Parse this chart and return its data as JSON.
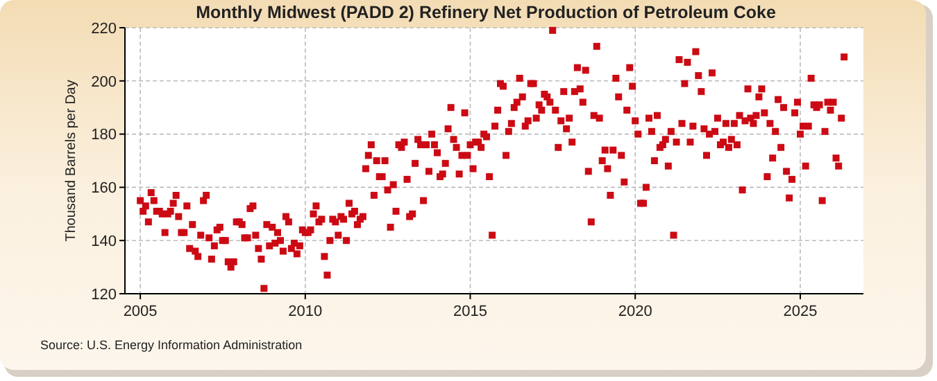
{
  "chart_data": {
    "type": "scatter",
    "title": "Monthly Midwest (PADD 2) Refinery Net Production of Petroleum Coke",
    "ylabel": "Thousand Barrels per Day",
    "annotations": [
      "Source: U.S. Energy Information Administration"
    ],
    "xlim": [
      "2004-07-15",
      "2026-12-01"
    ],
    "xticks": [
      {
        "value": "2005",
        "label": "2005"
      },
      {
        "value": "2010",
        "label": "2010"
      },
      {
        "value": "2015",
        "label": "2015"
      },
      {
        "value": "2020",
        "label": "2020"
      },
      {
        "value": "2025",
        "label": "2025"
      }
    ],
    "ylim": [
      120,
      220
    ],
    "yticks": [
      120,
      140,
      160,
      180,
      200,
      220
    ],
    "grid": true,
    "marker": "square",
    "x": [
      "2005-01",
      "2005-02",
      "2005-03",
      "2005-04",
      "2005-05",
      "2005-06",
      "2005-07",
      "2005-08",
      "2005-09",
      "2005-10",
      "2005-11",
      "2005-12",
      "2006-01",
      "2006-02",
      "2006-03",
      "2006-04",
      "2006-05",
      "2006-06",
      "2006-07",
      "2006-08",
      "2006-09",
      "2006-10",
      "2006-11",
      "2006-12",
      "2007-01",
      "2007-02",
      "2007-03",
      "2007-04",
      "2007-05",
      "2007-06",
      "2007-07",
      "2007-08",
      "2007-09",
      "2007-10",
      "2007-11",
      "2007-12",
      "2008-01",
      "2008-02",
      "2008-03",
      "2008-04",
      "2008-05",
      "2008-06",
      "2008-07",
      "2008-08",
      "2008-09",
      "2008-10",
      "2008-11",
      "2008-12",
      "2009-01",
      "2009-02",
      "2009-03",
      "2009-04",
      "2009-05",
      "2009-06",
      "2009-07",
      "2009-08",
      "2009-09",
      "2009-10",
      "2009-11",
      "2009-12",
      "2010-01",
      "2010-02",
      "2010-03",
      "2010-04",
      "2010-05",
      "2010-06",
      "2010-07",
      "2010-08",
      "2010-09",
      "2010-10",
      "2010-11",
      "2010-12",
      "2011-01",
      "2011-02",
      "2011-03",
      "2011-04",
      "2011-05",
      "2011-06",
      "2011-07",
      "2011-08",
      "2011-09",
      "2011-10",
      "2011-11",
      "2011-12",
      "2012-01",
      "2012-02",
      "2012-03",
      "2012-04",
      "2012-05",
      "2012-06",
      "2012-07",
      "2012-08",
      "2012-09",
      "2012-10",
      "2012-11",
      "2012-12",
      "2013-01",
      "2013-02",
      "2013-03",
      "2013-04",
      "2013-05",
      "2013-06",
      "2013-07",
      "2013-08",
      "2013-09",
      "2013-10",
      "2013-11",
      "2013-12",
      "2014-01",
      "2014-02",
      "2014-03",
      "2014-04",
      "2014-05",
      "2014-06",
      "2014-07",
      "2014-08",
      "2014-09",
      "2014-10",
      "2014-11",
      "2014-12",
      "2015-01",
      "2015-02",
      "2015-03",
      "2015-04",
      "2015-05",
      "2015-06",
      "2015-07",
      "2015-08",
      "2015-09",
      "2015-10",
      "2015-11",
      "2015-12",
      "2016-01",
      "2016-02",
      "2016-03",
      "2016-04",
      "2016-05",
      "2016-06",
      "2016-07",
      "2016-08",
      "2016-09",
      "2016-10",
      "2016-11",
      "2016-12",
      "2017-01",
      "2017-02",
      "2017-03",
      "2017-04",
      "2017-05",
      "2017-06",
      "2017-07",
      "2017-08",
      "2017-09",
      "2017-10",
      "2017-11",
      "2017-12",
      "2018-01",
      "2018-02",
      "2018-03",
      "2018-04",
      "2018-05",
      "2018-06",
      "2018-07",
      "2018-08",
      "2018-09",
      "2018-10",
      "2018-11",
      "2018-12",
      "2019-01",
      "2019-02",
      "2019-03",
      "2019-04",
      "2019-05",
      "2019-06",
      "2019-07",
      "2019-08",
      "2019-09",
      "2019-10",
      "2019-11",
      "2019-12",
      "2020-01",
      "2020-02",
      "2020-03",
      "2020-04",
      "2020-05",
      "2020-06",
      "2020-07",
      "2020-08",
      "2020-09",
      "2020-10",
      "2020-11",
      "2020-12",
      "2021-01",
      "2021-02",
      "2021-03",
      "2021-04",
      "2021-05",
      "2021-06",
      "2021-07",
      "2021-08",
      "2021-09",
      "2021-10",
      "2021-11",
      "2021-12",
      "2022-01",
      "2022-02",
      "2022-03",
      "2022-04",
      "2022-05",
      "2022-06",
      "2022-07",
      "2022-08",
      "2022-09",
      "2022-10",
      "2022-11",
      "2022-12",
      "2023-01",
      "2023-02",
      "2023-03",
      "2023-04",
      "2023-05",
      "2023-06",
      "2023-07",
      "2023-08",
      "2023-09",
      "2023-10",
      "2023-11",
      "2023-12",
      "2024-01",
      "2024-02",
      "2024-03",
      "2024-04",
      "2024-05",
      "2024-06",
      "2024-07",
      "2024-08",
      "2024-09",
      "2024-10",
      "2024-11",
      "2024-12",
      "2025-01",
      "2025-02",
      "2025-03",
      "2025-04",
      "2025-05",
      "2025-06",
      "2025-07",
      "2025-08",
      "2025-09",
      "2025-10",
      "2025-11",
      "2025-12",
      "2026-01",
      "2026-02",
      "2026-03",
      "2026-04",
      "2026-05"
    ],
    "series": [
      {
        "color": "#cc0a14",
        "values": [
          155,
          151,
          153,
          147,
          158,
          155,
          151,
          151,
          150,
          143,
          150,
          151,
          154,
          157,
          149,
          143,
          143,
          153,
          137,
          146,
          136,
          134,
          142,
          155,
          157,
          141,
          133,
          138,
          144,
          145,
          140,
          140,
          132,
          130,
          132,
          147,
          147,
          146,
          141,
          141,
          152,
          153,
          142,
          137,
          133,
          122,
          146,
          138,
          145,
          139,
          143,
          140,
          136,
          149,
          147,
          137,
          139,
          135,
          138,
          144,
          143,
          143,
          144,
          150,
          153,
          147,
          148,
          134,
          127,
          140,
          148,
          147,
          142,
          149,
          148,
          140,
          154,
          150,
          151,
          146,
          148,
          149,
          167,
          172,
          176,
          157,
          170,
          164,
          164,
          170,
          159,
          145,
          161,
          151,
          176,
          175,
          177,
          163,
          149,
          150,
          169,
          178,
          176,
          155,
          176,
          166,
          180,
          176,
          173,
          164,
          165,
          169,
          182,
          190,
          178,
          175,
          165,
          172,
          188,
          172,
          176,
          167,
          177,
          177,
          175,
          180,
          179,
          164,
          142,
          183,
          189,
          199,
          198,
          172,
          181,
          184,
          190,
          192,
          201,
          194,
          183,
          185,
          199,
          199,
          186,
          191,
          189,
          195,
          194,
          192,
          219,
          189,
          175,
          185,
          196,
          182,
          186,
          177,
          196,
          205,
          197,
          192,
          204,
          166,
          147,
          187,
          213,
          186,
          170,
          174,
          167,
          157,
          174,
          201,
          194,
          172,
          162,
          189,
          205,
          198,
          185,
          180,
          154,
          154,
          160,
          186,
          181,
          170,
          187,
          175,
          176,
          178,
          168,
          181,
          142,
          177,
          208,
          184,
          199,
          207,
          177,
          183,
          211,
          202,
          196,
          182,
          172,
          180,
          203,
          181,
          186,
          176,
          177,
          184,
          175,
          178,
          184,
          176,
          187,
          159,
          185,
          197,
          186,
          184,
          187,
          194,
          197,
          188,
          164,
          184,
          171,
          181,
          193,
          175,
          190,
          166,
          156,
          163,
          188,
          192,
          180,
          183,
          168,
          183,
          201,
          191,
          190,
          191,
          155,
          181,
          192,
          189,
          192,
          171,
          168,
          186,
          209
        ]
      }
    ]
  }
}
